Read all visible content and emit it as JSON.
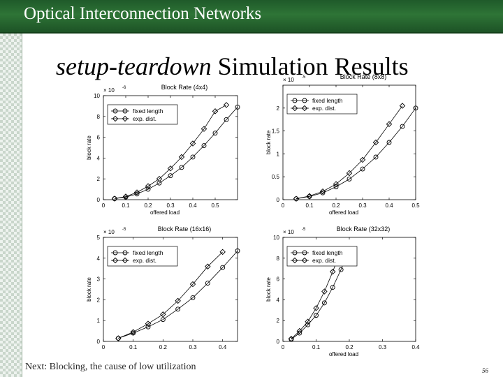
{
  "header": {
    "title": "Optical Interconnection Networks"
  },
  "slide": {
    "title_italic": "setup-teardown",
    "title_rest": " Simulation Results",
    "footer": "Next: Blocking, the cause of low utilization",
    "page_number": "56"
  },
  "chart_data": [
    {
      "type": "line",
      "title": "Block Rate (4x4)",
      "xlabel": "offered load",
      "ylabel": "block rate",
      "scale_label": "× 10",
      "scale_exp": "-6",
      "xlim": [
        0,
        0.6
      ],
      "ylim": [
        0,
        10
      ],
      "xticks": [
        0,
        0.1,
        0.2,
        0.3,
        0.4,
        0.5
      ],
      "xtick_labels": [
        "0",
        "0.1",
        "0.2",
        "0.3",
        "0.4",
        "0.5"
      ],
      "yticks": [
        0,
        2,
        4,
        6,
        8,
        10
      ],
      "ytick_labels": [
        "0",
        "2",
        "4",
        "6",
        "8",
        "10"
      ],
      "legend": [
        "fixed length",
        "exp. dist."
      ],
      "series": [
        {
          "name": "fixed length",
          "marker": "circle",
          "x": [
            0.05,
            0.1,
            0.15,
            0.2,
            0.25,
            0.3,
            0.35,
            0.4,
            0.45,
            0.5,
            0.55,
            0.6
          ],
          "y": [
            0.1,
            0.25,
            0.55,
            1.0,
            1.6,
            2.3,
            3.1,
            4.1,
            5.2,
            6.4,
            7.7,
            8.9
          ]
        },
        {
          "name": "exp. dist.",
          "marker": "diamond",
          "x": [
            0.05,
            0.1,
            0.15,
            0.2,
            0.25,
            0.3,
            0.35,
            0.4,
            0.45,
            0.5,
            0.55
          ],
          "y": [
            0.1,
            0.3,
            0.7,
            1.3,
            2.0,
            3.0,
            4.1,
            5.4,
            6.8,
            8.5,
            9.1
          ]
        }
      ]
    },
    {
      "type": "line",
      "title": "Block Rate (8x8)",
      "xlabel": "offered load",
      "ylabel": "block rate",
      "scale_label": "× 10",
      "scale_exp": "-5",
      "xlim": [
        0,
        0.5
      ],
      "ylim": [
        0,
        2.5
      ],
      "xticks": [
        0,
        0.1,
        0.2,
        0.3,
        0.4,
        0.5
      ],
      "xtick_labels": [
        "0",
        "0.1",
        "0.2",
        "0.3",
        "0.4",
        "0.5"
      ],
      "yticks": [
        0,
        0.5,
        1,
        1.5,
        2
      ],
      "ytick_labels": [
        "0",
        "0.5",
        "1",
        "1.5",
        "2"
      ],
      "legend": [
        "fixed length",
        "exp. dist."
      ],
      "series": [
        {
          "name": "fixed length",
          "marker": "circle",
          "x": [
            0.05,
            0.1,
            0.15,
            0.2,
            0.25,
            0.3,
            0.35,
            0.4,
            0.45,
            0.5
          ],
          "y": [
            0.02,
            0.07,
            0.15,
            0.28,
            0.45,
            0.67,
            0.93,
            1.25,
            1.6,
            2.0
          ]
        },
        {
          "name": "exp. dist.",
          "marker": "diamond",
          "x": [
            0.05,
            0.1,
            0.15,
            0.2,
            0.25,
            0.3,
            0.35,
            0.4,
            0.45
          ],
          "y": [
            0.02,
            0.08,
            0.18,
            0.34,
            0.58,
            0.87,
            1.25,
            1.65,
            2.05
          ]
        }
      ]
    },
    {
      "type": "line",
      "title": "Block Rate (16x16)",
      "xlabel": "",
      "ylabel": "block rate",
      "scale_label": "× 10",
      "scale_exp": "-5",
      "xlim": [
        0,
        0.45
      ],
      "ylim": [
        0,
        5
      ],
      "xticks": [
        0,
        0.1,
        0.2,
        0.3,
        0.4
      ],
      "xtick_labels": [
        "0",
        "0.1",
        "0.2",
        "0.3",
        "0.4"
      ],
      "yticks": [
        0,
        1,
        2,
        3,
        4,
        5
      ],
      "ytick_labels": [
        "0",
        "1",
        "2",
        "3",
        "4",
        "5"
      ],
      "legend": [
        "fixed length",
        "exp. dist."
      ],
      "series": [
        {
          "name": "fixed length",
          "marker": "circle",
          "x": [
            0.05,
            0.1,
            0.15,
            0.2,
            0.25,
            0.3,
            0.35,
            0.4,
            0.45
          ],
          "y": [
            0.15,
            0.4,
            0.7,
            1.05,
            1.55,
            2.1,
            2.8,
            3.55,
            4.35
          ]
        },
        {
          "name": "exp. dist.",
          "marker": "diamond",
          "x": [
            0.05,
            0.1,
            0.15,
            0.2,
            0.25,
            0.3,
            0.35,
            0.4
          ],
          "y": [
            0.15,
            0.45,
            0.85,
            1.3,
            1.95,
            2.75,
            3.6,
            4.3
          ]
        }
      ]
    },
    {
      "type": "line",
      "title": "Block Rate (32x32)",
      "xlabel": "offered load",
      "ylabel": "block rate",
      "scale_label": "× 10",
      "scale_exp": "-5",
      "xlim": [
        0,
        0.4
      ],
      "ylim": [
        0,
        10
      ],
      "xticks": [
        0,
        0.1,
        0.2,
        0.3,
        0.4
      ],
      "xtick_labels": [
        "0",
        "0.1",
        "0.2",
        "0.3",
        "0.4"
      ],
      "yticks": [
        0,
        2,
        4,
        6,
        8,
        10
      ],
      "ytick_labels": [
        "0",
        "2",
        "4",
        "6",
        "8",
        "10"
      ],
      "legend": [
        "fixed length",
        "exp. dist."
      ],
      "series": [
        {
          "name": "fixed length",
          "marker": "circle",
          "x": [
            0.025,
            0.05,
            0.075,
            0.1,
            0.125,
            0.15,
            0.175,
            0.2
          ],
          "y": [
            0.2,
            0.8,
            1.6,
            2.5,
            3.7,
            5.2,
            6.9,
            8.9
          ]
        },
        {
          "name": "exp. dist.",
          "marker": "diamond",
          "x": [
            0.025,
            0.05,
            0.075,
            0.1,
            0.125,
            0.15,
            0.175
          ],
          "y": [
            0.25,
            1.0,
            1.9,
            3.2,
            4.8,
            6.7,
            8.8
          ]
        }
      ]
    }
  ]
}
